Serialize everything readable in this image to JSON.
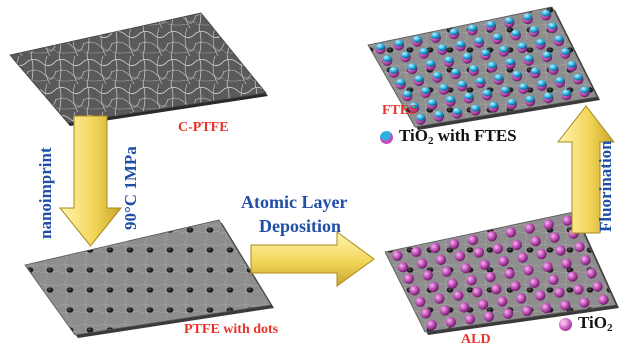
{
  "colors": {
    "label_red": "#e8332b",
    "label_blue": "#1f4fa8",
    "arrow_fill": "#f2d65a",
    "tio2_sphere": "#c24fb8",
    "ftes_cap": "#2ab3e0"
  },
  "panels": {
    "cptfe": {
      "label": "C-PTFE",
      "surface": "fibrous nanofiber mat"
    },
    "dots": {
      "label": "PTFE with dots",
      "surface": "dimpled membrane"
    },
    "ald": {
      "label": "ALD",
      "surface": "dimpled membrane with TiO2 spheres"
    },
    "ftes": {
      "label": "FTES",
      "surface": "dimpled membrane with FTES-capped TiO2 spheres"
    }
  },
  "arrows": {
    "nanoimprint": {
      "text": "nanoimprint",
      "condition": "90°C 1MPa",
      "direction": "down"
    },
    "ald": {
      "line1": "Atomic Layer",
      "line2": "Deposition",
      "direction": "right"
    },
    "fluorination": {
      "text": "Fluorination",
      "direction": "up"
    }
  },
  "legend": {
    "ftes": {
      "prefix": "TiO",
      "sub": "2",
      "suffix": " with FTES"
    },
    "tio2": {
      "prefix": "TiO",
      "sub": "2",
      "suffix": ""
    }
  }
}
